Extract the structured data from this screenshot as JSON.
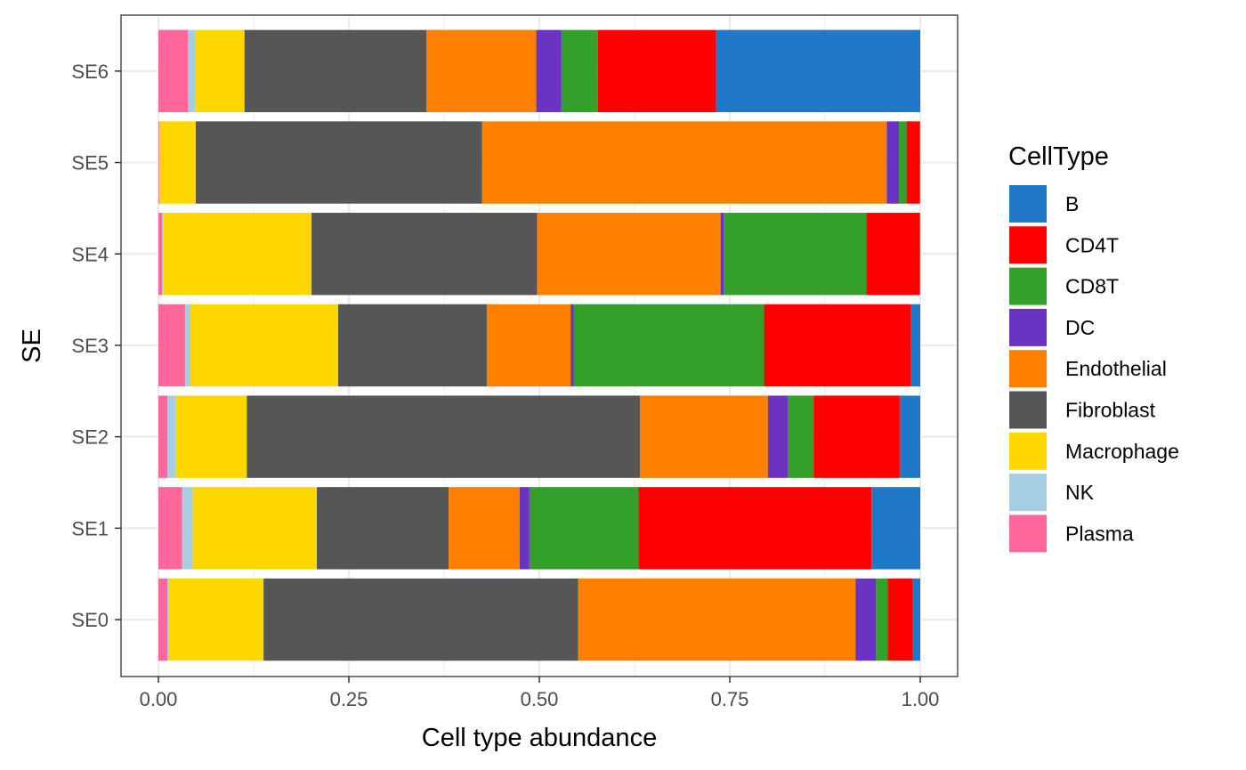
{
  "chart_data": {
    "type": "bar",
    "orientation": "horizontal",
    "stacked": true,
    "xlabel": "Cell type abundance",
    "ylabel": "SE",
    "xlim": [
      0,
      1
    ],
    "x_ticks": [
      "0.00",
      "0.25",
      "0.50",
      "0.75",
      "1.00"
    ],
    "x_tick_values": [
      0,
      0.25,
      0.5,
      0.75,
      1.0
    ],
    "grid": true,
    "legend": {
      "title": "CellType",
      "position": "right"
    },
    "categories": [
      "SE0",
      "SE1",
      "SE2",
      "SE3",
      "SE4",
      "SE5",
      "SE6"
    ],
    "stack_order": [
      "Plasma",
      "NK",
      "Macrophage",
      "Fibroblast",
      "Endothelial",
      "DC",
      "CD8T",
      "CD4T",
      "B"
    ],
    "series": [
      {
        "name": "B",
        "color": "#1F78C8",
        "values": [
          0.01,
          0.064,
          0.027,
          0.012,
          0.001,
          0.001,
          0.268
        ]
      },
      {
        "name": "CD4T",
        "color": "#FF0000",
        "values": [
          0.033,
          0.306,
          0.113,
          0.193,
          0.07,
          0.017,
          0.155
        ]
      },
      {
        "name": "CD8T",
        "color": "#33A02C",
        "values": [
          0.015,
          0.143,
          0.034,
          0.25,
          0.187,
          0.01,
          0.048
        ]
      },
      {
        "name": "DC",
        "color": "#6A33C2",
        "values": [
          0.027,
          0.013,
          0.026,
          0.004,
          0.004,
          0.016,
          0.033
        ]
      },
      {
        "name": "Endothelial",
        "color": "#FF7F00",
        "values": [
          0.364,
          0.093,
          0.168,
          0.11,
          0.241,
          0.531,
          0.144
        ]
      },
      {
        "name": "Fibroblast",
        "color": "#565656",
        "values": [
          0.413,
          0.173,
          0.516,
          0.195,
          0.296,
          0.376,
          0.239
        ]
      },
      {
        "name": "Macrophage",
        "color": "#FFD700",
        "values": [
          0.124,
          0.163,
          0.093,
          0.194,
          0.195,
          0.047,
          0.065
        ]
      },
      {
        "name": "NK",
        "color": "#A6CEE3",
        "values": [
          0.002,
          0.014,
          0.011,
          0.007,
          0.001,
          0.001,
          0.009
        ]
      },
      {
        "name": "Plasma",
        "color": "#FF6699",
        "values": [
          0.012,
          0.031,
          0.012,
          0.035,
          0.005,
          0.001,
          0.039
        ]
      }
    ]
  }
}
